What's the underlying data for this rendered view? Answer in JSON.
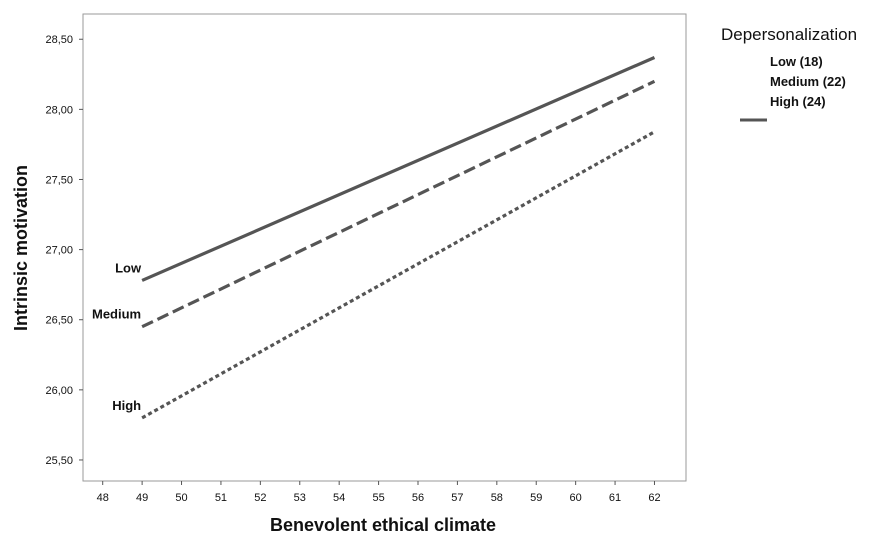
{
  "chart_data": {
    "type": "line",
    "xlabel": "Benevolent ethical climate",
    "ylabel": "Intrinsic motivation",
    "xlim": [
      47.5,
      62.8
    ],
    "ylim": [
      25.35,
      28.68
    ],
    "x_ticks": [
      "48",
      "49",
      "50",
      "51",
      "52",
      "53",
      "54",
      "55",
      "56",
      "57",
      "58",
      "59",
      "60",
      "61",
      "62"
    ],
    "y_ticks": [
      "25,50",
      "26,00",
      "26,50",
      "27,00",
      "27,50",
      "28,00",
      "28,50"
    ],
    "legend": {
      "title": "Depersonalization",
      "entries": [
        "Low (18)",
        "Medium (22)",
        "High (24)"
      ],
      "placement": "right"
    },
    "series": [
      {
        "name": "Low",
        "style": "solid",
        "x": [
          49,
          62
        ],
        "y": [
          26.78,
          28.37
        ],
        "color": "#555555"
      },
      {
        "name": "Medium",
        "style": "dashed",
        "x": [
          49,
          62
        ],
        "y": [
          26.45,
          28.2
        ],
        "color": "#555555"
      },
      {
        "name": "High",
        "style": "dotted",
        "x": [
          49,
          62
        ],
        "y": [
          25.8,
          27.84
        ],
        "color": "#555555"
      }
    ]
  }
}
